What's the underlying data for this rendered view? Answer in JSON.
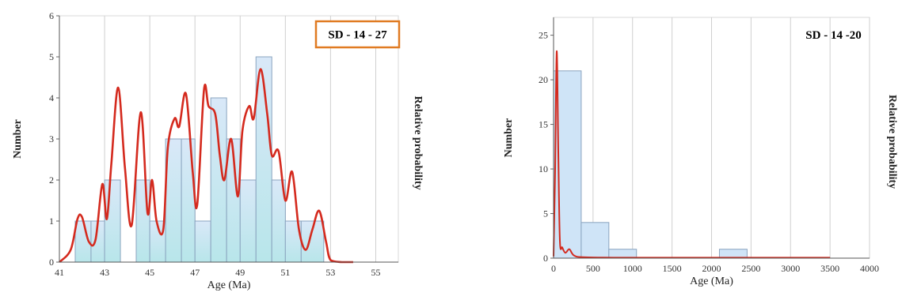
{
  "chart_data": [
    {
      "type": "bar",
      "label": "SD - 14 - 27",
      "xlabel": "Age (Ma)",
      "ylabel": "Number",
      "y2label": "Relative probability",
      "xlim": [
        41,
        56
      ],
      "ylim": [
        0,
        6
      ],
      "xticks": [
        "41",
        "43",
        "45",
        "47",
        "49",
        "51",
        "53",
        "55"
      ],
      "yticks": [
        "0",
        "1",
        "2",
        "3",
        "4",
        "5",
        "6"
      ],
      "grid": true,
      "bin_edges": [
        41.7,
        42.4,
        43.0,
        43.7,
        44.4,
        45.0,
        45.7,
        46.4,
        47.0,
        47.7,
        48.4,
        49.0,
        49.7,
        50.4,
        51.0,
        51.7,
        52.7
      ],
      "bin_counts": [
        1,
        1,
        2,
        0,
        2,
        1,
        3,
        3,
        1,
        4,
        3,
        2,
        5,
        2,
        1,
        1
      ],
      "probability_curve": {
        "color": "#d42a1e",
        "x": [
          41.0,
          41.5,
          41.8,
          42.0,
          42.3,
          42.6,
          42.9,
          43.1,
          43.3,
          43.6,
          43.9,
          44.2,
          44.6,
          44.9,
          45.1,
          45.3,
          45.6,
          45.8,
          46.1,
          46.3,
          46.6,
          46.9,
          47.1,
          47.4,
          47.6,
          47.9,
          48.1,
          48.3,
          48.6,
          48.9,
          49.1,
          49.4,
          49.6,
          49.9,
          50.2,
          50.4,
          50.7,
          51.0,
          51.3,
          51.6,
          51.9,
          52.2,
          52.5,
          52.8,
          53.0,
          53.5,
          54.0
        ],
        "y": [
          0.0,
          0.3,
          1.05,
          1.1,
          0.5,
          0.55,
          1.9,
          1.05,
          2.4,
          4.25,
          2.3,
          0.9,
          3.65,
          1.2,
          2.0,
          1.0,
          0.8,
          2.8,
          3.5,
          3.3,
          4.1,
          2.2,
          1.4,
          4.2,
          3.8,
          3.6,
          2.6,
          2.0,
          3.0,
          1.6,
          3.2,
          3.8,
          3.5,
          4.7,
          3.6,
          2.6,
          2.7,
          1.5,
          2.2,
          0.8,
          0.3,
          0.8,
          1.25,
          0.5,
          0.05,
          0.0,
          0.0
        ]
      },
      "colors": {
        "bar_fill": "#cfe4f7",
        "bar_stroke": "#8aa4bf",
        "label_border": "#e07b22"
      }
    },
    {
      "type": "bar",
      "label": "SD - 14 -20",
      "xlabel": "Age (Ma)",
      "ylabel": "Number",
      "y2label": "Relative probability",
      "xlim": [
        0,
        4000
      ],
      "ylim": [
        0,
        27
      ],
      "xticks": [
        "0",
        "500",
        "1000",
        "1500",
        "2000",
        "2500",
        "3000",
        "3500",
        "4000"
      ],
      "yticks": [
        "0",
        "5",
        "10",
        "15",
        "20",
        "25"
      ],
      "grid": true,
      "bin_edges": [
        0,
        350,
        700,
        1050,
        2100,
        2450
      ],
      "bin_counts": [
        21,
        4,
        1,
        0,
        1
      ],
      "probability_curve": {
        "color": "#d42a1e",
        "x": [
          0,
          20,
          40,
          60,
          80,
          110,
          150,
          200,
          260,
          400,
          1000,
          2000,
          3500
        ],
        "y": [
          0.2,
          10,
          23.2,
          12,
          2,
          1.2,
          0.6,
          1.0,
          0.3,
          0.1,
          0.05,
          0.05,
          0.05
        ]
      },
      "colors": {
        "bar_fill": "#cfe4f7",
        "bar_stroke": "#8aa4bf",
        "label_border": "none"
      }
    }
  ]
}
